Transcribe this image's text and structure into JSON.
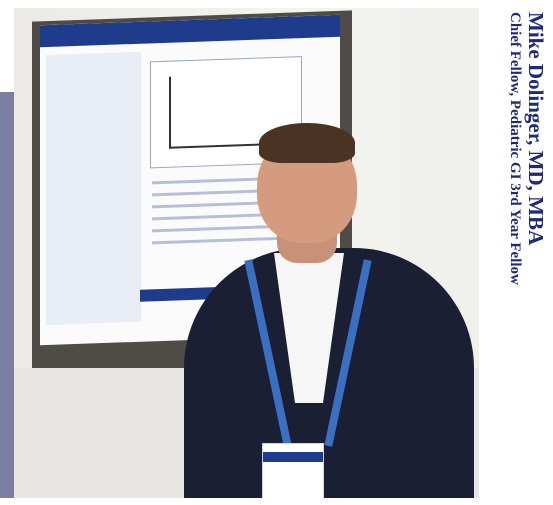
{
  "caption": {
    "name": "Mike Dolinger, MD, MBA",
    "title": "Chief Fellow, Pediatric GI 3rd Year Fellow"
  },
  "photo": {
    "subject": "smiling-man-in-suit-with-lanyard-badge",
    "background": "research-poster-board"
  },
  "colors": {
    "caption_text": "#1e2a78",
    "left_accent_bar": "#7b7da3",
    "poster_header": "#1f3b8c"
  }
}
